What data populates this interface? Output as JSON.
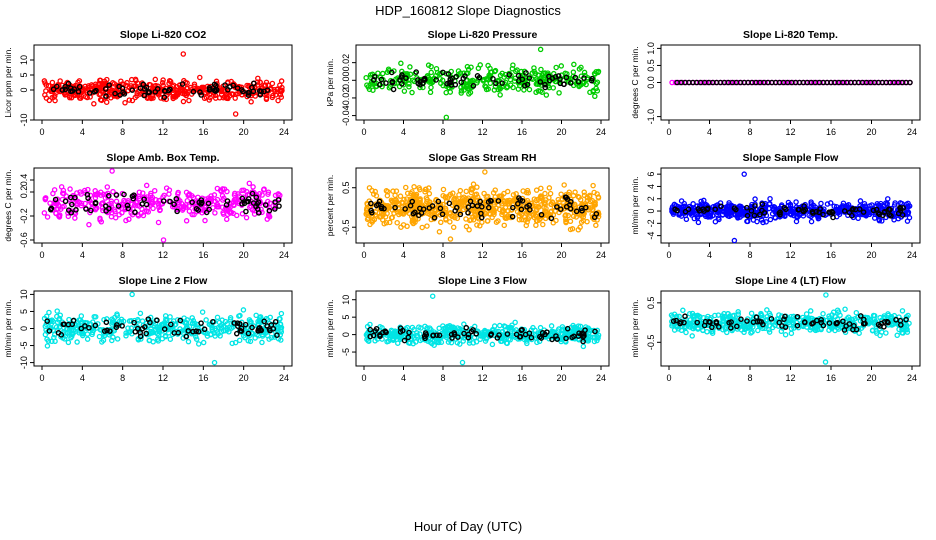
{
  "figure": {
    "title": "HDP_160812  Slope Diagnostics",
    "xlabel": "Hour of Day (UTC)"
  },
  "colors": {
    "red": "#ff0000",
    "green": "#00cc00",
    "magenta": "#ff00ff",
    "orange": "#ffa500",
    "blue": "#0000ff",
    "cyan": "#00e5e5",
    "black": "#000000"
  },
  "chart_data": [
    {
      "type": "scatter",
      "title": "Slope Li-820 CO2",
      "ylabel": "Licor ppm per min.",
      "x_range": [
        0,
        24
      ],
      "xticks": [
        "0",
        "4",
        "8",
        "12",
        "16",
        "20",
        "24"
      ],
      "ylim": [
        -10,
        15
      ],
      "yticks": [
        "-10",
        "0",
        "5",
        "10"
      ],
      "ytick_values": [
        -10,
        0,
        5,
        10
      ],
      "color": "red",
      "spread": 3,
      "outlier_values": [
        12,
        -8
      ],
      "n_points": 450
    },
    {
      "type": "scatter",
      "title": "Slope Li-820 Pressure",
      "ylabel": "kPa per min.",
      "x_range": [
        0,
        24
      ],
      "xticks": [
        "0",
        "4",
        "8",
        "12",
        "16",
        "20",
        "24"
      ],
      "ylim": [
        -0.045,
        0.04
      ],
      "yticks": [
        "-0.04",
        "-0.02",
        "0.00",
        "0.02"
      ],
      "ytick_values": [
        -0.04,
        -0.02,
        0,
        0.02
      ],
      "color": "green",
      "spread": 0.012,
      "outlier_values": [
        0.035,
        -0.042
      ],
      "n_points": 330
    },
    {
      "type": "scatter",
      "title": "Slope Li-820 Temp.",
      "ylabel": "degrees C per min.",
      "x_range": [
        0,
        24
      ],
      "xticks": [
        "0",
        "4",
        "8",
        "12",
        "16",
        "20",
        "24"
      ],
      "ylim": [
        -1.1,
        1.1
      ],
      "yticks": [
        "-1.0",
        "0.0",
        "0.5",
        "1.0"
      ],
      "ytick_values": [
        -1,
        0,
        0.5,
        1
      ],
      "color": "magenta",
      "spread": 0,
      "outlier_values": [],
      "n_points": 70
    },
    {
      "type": "scatter",
      "title": "Slope Amb. Box Temp.",
      "ylabel": "degrees C per min.",
      "x_range": [
        0,
        24
      ],
      "xticks": [
        "0",
        "4",
        "8",
        "12",
        "16",
        "20",
        "24"
      ],
      "ylim": [
        -0.65,
        0.6
      ],
      "yticks": [
        "-0.6",
        "-0.2",
        "0.2",
        "0.4"
      ],
      "ytick_values": [
        -0.6,
        -0.2,
        0.2,
        0.4
      ],
      "color": "magenta",
      "spread": 0.22,
      "outlier_values": [
        0.55,
        -0.6
      ],
      "n_points": 380
    },
    {
      "type": "scatter",
      "title": "Slope Gas Stream RH",
      "ylabel": "percent per min.",
      "x_range": [
        0,
        24
      ],
      "xticks": [
        "0",
        "4",
        "8",
        "12",
        "16",
        "20",
        "24"
      ],
      "ylim": [
        -0.9,
        1.0
      ],
      "yticks": [
        "-0.5",
        "0.5"
      ],
      "ytick_values": [
        -0.5,
        0.5
      ],
      "color": "orange",
      "spread": 0.4,
      "outlier_values": [
        0.9,
        -0.8
      ],
      "n_points": 650
    },
    {
      "type": "scatter",
      "title": "Slope Sample Flow",
      "ylabel": "ml/min per min.",
      "x_range": [
        0,
        24
      ],
      "xticks": [
        "0",
        "4",
        "8",
        "12",
        "16",
        "20",
        "24"
      ],
      "ylim": [
        -5.2,
        7
      ],
      "yticks": [
        "-4",
        "-2",
        "0",
        "2",
        "4",
        "6"
      ],
      "ytick_values": [
        -4,
        -2,
        0,
        2,
        4,
        6
      ],
      "color": "blue",
      "spread": 1.3,
      "outlier_values": [
        6,
        -4.8
      ],
      "n_points": 560
    },
    {
      "type": "scatter",
      "title": "Slope Line 2 Flow",
      "ylabel": "ml/min per min.",
      "x_range": [
        0,
        24
      ],
      "xticks": [
        "0",
        "4",
        "8",
        "12",
        "16",
        "20",
        "24"
      ],
      "ylim": [
        -11,
        11
      ],
      "yticks": [
        "-10",
        "-5",
        "0",
        "5",
        "10"
      ],
      "ytick_values": [
        -10,
        -5,
        0,
        5,
        10
      ],
      "color": "cyan",
      "spread": 3.5,
      "outlier_values": [
        10,
        -10
      ],
      "n_points": 430
    },
    {
      "type": "scatter",
      "title": "Slope Line 3 Flow",
      "ylabel": "ml/min per min.",
      "x_range": [
        0,
        24
      ],
      "xticks": [
        "0",
        "4",
        "8",
        "12",
        "16",
        "20",
        "24"
      ],
      "ylim": [
        -9,
        12.5
      ],
      "yticks": [
        "-5",
        "0",
        "5",
        "10"
      ],
      "ytick_values": [
        -5,
        0,
        5,
        10
      ],
      "color": "cyan",
      "spread": 2.3,
      "outlier_values": [
        11,
        -8
      ],
      "n_points": 450
    },
    {
      "type": "scatter",
      "title": "Slope Line 4 (LT) Flow",
      "ylabel": "ml/min per min.",
      "x_range": [
        0,
        24
      ],
      "xticks": [
        "0",
        "4",
        "8",
        "12",
        "16",
        "20",
        "24"
      ],
      "ylim": [
        -1.1,
        0.8
      ],
      "yticks": [
        "-0.5",
        "0.5"
      ],
      "ytick_values": [
        -0.5,
        0.5
      ],
      "color": "cyan",
      "spread": 0.22,
      "outlier_values": [
        0.7,
        -1.0
      ],
      "n_points": 470
    }
  ]
}
